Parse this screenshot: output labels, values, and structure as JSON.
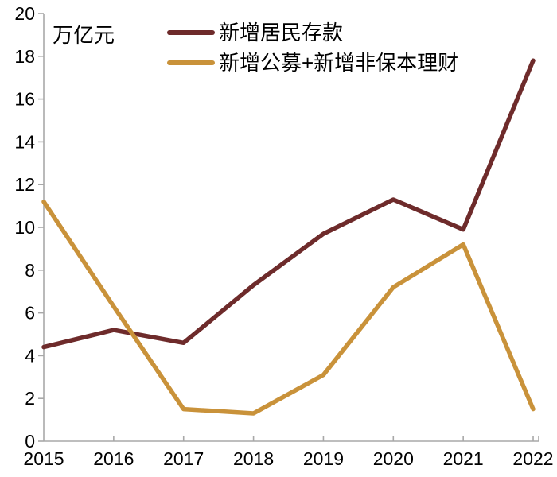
{
  "chart_data": {
    "type": "line",
    "title": "",
    "ylabel": "万亿元",
    "xlabel": "",
    "categories": [
      "2015",
      "2016",
      "2017",
      "2018",
      "2019",
      "2020",
      "2021",
      "2022"
    ],
    "series": [
      {
        "name": "新增居民存款",
        "color": "#6E2B2B",
        "values": [
          4.4,
          5.2,
          4.6,
          7.3,
          9.7,
          11.3,
          9.9,
          17.8
        ]
      },
      {
        "name": "新增公募+新增非保本理财",
        "color": "#C9923A",
        "values": [
          11.2,
          6.3,
          1.5,
          1.3,
          3.1,
          7.2,
          9.2,
          1.5
        ]
      }
    ],
    "y_ticks": [
      "0",
      "2",
      "4",
      "6",
      "8",
      "10",
      "12",
      "14",
      "16",
      "18",
      "20"
    ],
    "ylim": [
      0,
      20
    ],
    "grid": false,
    "legend_position": "top-center",
    "axis_color": "#A8A8A8",
    "text_color": "#000000"
  }
}
